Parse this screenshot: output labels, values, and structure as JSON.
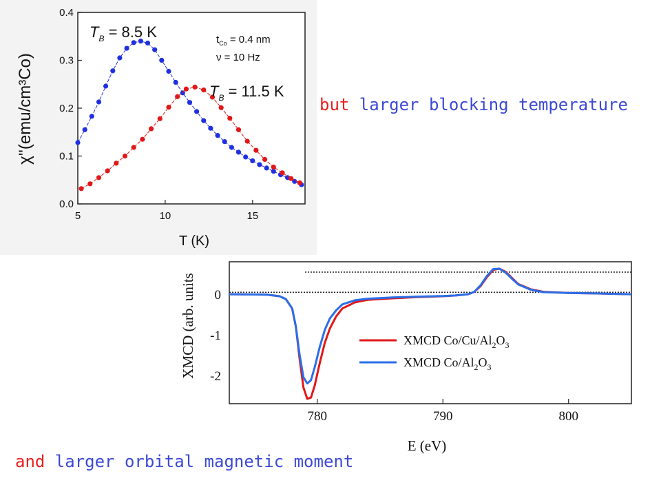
{
  "captions": {
    "top": {
      "red": "but",
      "blue": " larger blocking temperature"
    },
    "bottom": {
      "red": "and",
      "blue": " larger orbital magnetic moment"
    }
  },
  "colors": {
    "red": "#e8211f",
    "blue": "#2a5ee8",
    "caption_red": "#e8211f",
    "caption_blue": "#3c49d4"
  },
  "chart_data": [
    {
      "type": "scatter",
      "ylabel": "χ''(emu/cm³Co)",
      "xlabel": "T (K)",
      "xlim": [
        5,
        18
      ],
      "ylim": [
        0,
        0.4
      ],
      "xticks": [
        "5",
        "10",
        "15"
      ],
      "yticks": [
        "0.0",
        "0.1",
        "0.2",
        "0.3",
        "0.4"
      ],
      "annotations": {
        "tb_blue": {
          "T": "T",
          "sub": "B",
          "value": " = 8.5 K"
        },
        "tb_red": {
          "T": "T",
          "sub": "B",
          "value": " = 11.5 K"
        },
        "tco": {
          "t": "t",
          "sub": "Co",
          "value": " = 0.4 nm"
        },
        "nu": {
          "text": "ν = 10 Hz"
        }
      },
      "series": [
        {
          "color": "#2030e0",
          "x": [
            5.0,
            5.4,
            5.8,
            6.2,
            6.6,
            7.0,
            7.4,
            7.8,
            8.2,
            8.6,
            9.0,
            9.4,
            9.8,
            10.2,
            10.6,
            11.0,
            11.4,
            11.8,
            12.2,
            12.6,
            13.0,
            13.4,
            13.8,
            14.2,
            14.6,
            15.0,
            15.4,
            15.8,
            16.2,
            16.6,
            17.0,
            17.4,
            17.8
          ],
          "values": [
            0.128,
            0.155,
            0.183,
            0.213,
            0.246,
            0.278,
            0.305,
            0.325,
            0.337,
            0.34,
            0.336,
            0.322,
            0.3,
            0.277,
            0.254,
            0.232,
            0.212,
            0.193,
            0.174,
            0.158,
            0.143,
            0.13,
            0.118,
            0.108,
            0.098,
            0.09,
            0.082,
            0.075,
            0.068,
            0.061,
            0.055,
            0.047,
            0.04
          ]
        },
        {
          "color": "#e01818",
          "x": [
            5.2,
            5.7,
            6.2,
            6.7,
            7.2,
            7.7,
            8.2,
            8.7,
            9.2,
            9.7,
            10.2,
            10.7,
            11.2,
            11.7,
            12.2,
            12.7,
            13.2,
            13.7,
            14.2,
            14.7,
            15.2,
            15.7,
            16.2,
            16.7,
            17.2,
            17.7
          ],
          "values": [
            0.032,
            0.042,
            0.055,
            0.069,
            0.085,
            0.1,
            0.118,
            0.135,
            0.157,
            0.178,
            0.202,
            0.224,
            0.24,
            0.244,
            0.238,
            0.223,
            0.201,
            0.179,
            0.155,
            0.131,
            0.112,
            0.093,
            0.077,
            0.065,
            0.053,
            0.044
          ]
        }
      ]
    },
    {
      "type": "line",
      "ylabel": "XMCD (arb. units",
      "xlabel": "E (eV)",
      "xlim": [
        773,
        805
      ],
      "ylim": [
        -2.7,
        0.8
      ],
      "xticks": [
        "780",
        "790",
        "800"
      ],
      "yticks": [
        "0",
        "-1",
        "-2"
      ],
      "series": [
        {
          "name": "XMCD Co/Cu/Al2O3",
          "legend": {
            "prefix": "XMCD Co/Cu/Al",
            "sub1": "2",
            "mid": "O",
            "sub2": "3"
          },
          "color": "#e01818",
          "x": [
            773,
            776,
            777,
            777.5,
            778,
            778.3,
            778.6,
            778.9,
            779.2,
            779.5,
            779.8,
            780.2,
            780.6,
            781,
            781.5,
            782,
            783,
            784,
            786,
            788,
            790,
            791,
            792,
            792.5,
            793,
            793.5,
            794,
            794.5,
            795,
            795.5,
            796,
            797,
            798,
            800,
            802,
            805
          ],
          "values": [
            0,
            -0.01,
            -0.05,
            -0.12,
            -0.35,
            -0.8,
            -1.6,
            -2.3,
            -2.58,
            -2.55,
            -2.25,
            -1.7,
            -1.2,
            -0.85,
            -0.55,
            -0.35,
            -0.2,
            -0.14,
            -0.1,
            -0.07,
            -0.05,
            -0.03,
            0.0,
            0.06,
            0.2,
            0.42,
            0.6,
            0.63,
            0.55,
            0.4,
            0.25,
            0.12,
            0.06,
            0.03,
            0.02,
            0.0
          ]
        },
        {
          "name": "XMCD Co/Al2O3",
          "legend": {
            "prefix": "XMCD Co/Al",
            "sub1": "2",
            "mid": "O",
            "sub2": "3"
          },
          "color": "#2a6ee8",
          "x": [
            773,
            776,
            777,
            777.5,
            778,
            778.3,
            778.6,
            778.9,
            779.2,
            779.5,
            779.8,
            780.2,
            780.6,
            781,
            781.5,
            782,
            783,
            784,
            786,
            788,
            790,
            791,
            792,
            792.5,
            793,
            793.5,
            794,
            794.5,
            795,
            795.5,
            796,
            797,
            798,
            800,
            802,
            805
          ],
          "values": [
            0,
            -0.01,
            -0.05,
            -0.12,
            -0.35,
            -0.8,
            -1.5,
            -2.05,
            -2.2,
            -2.12,
            -1.8,
            -1.3,
            -0.88,
            -0.6,
            -0.4,
            -0.25,
            -0.15,
            -0.11,
            -0.08,
            -0.06,
            -0.045,
            -0.03,
            0.0,
            0.06,
            0.22,
            0.45,
            0.62,
            0.63,
            0.53,
            0.38,
            0.24,
            0.11,
            0.05,
            0.03,
            0.02,
            0.0
          ]
        }
      ]
    }
  ]
}
